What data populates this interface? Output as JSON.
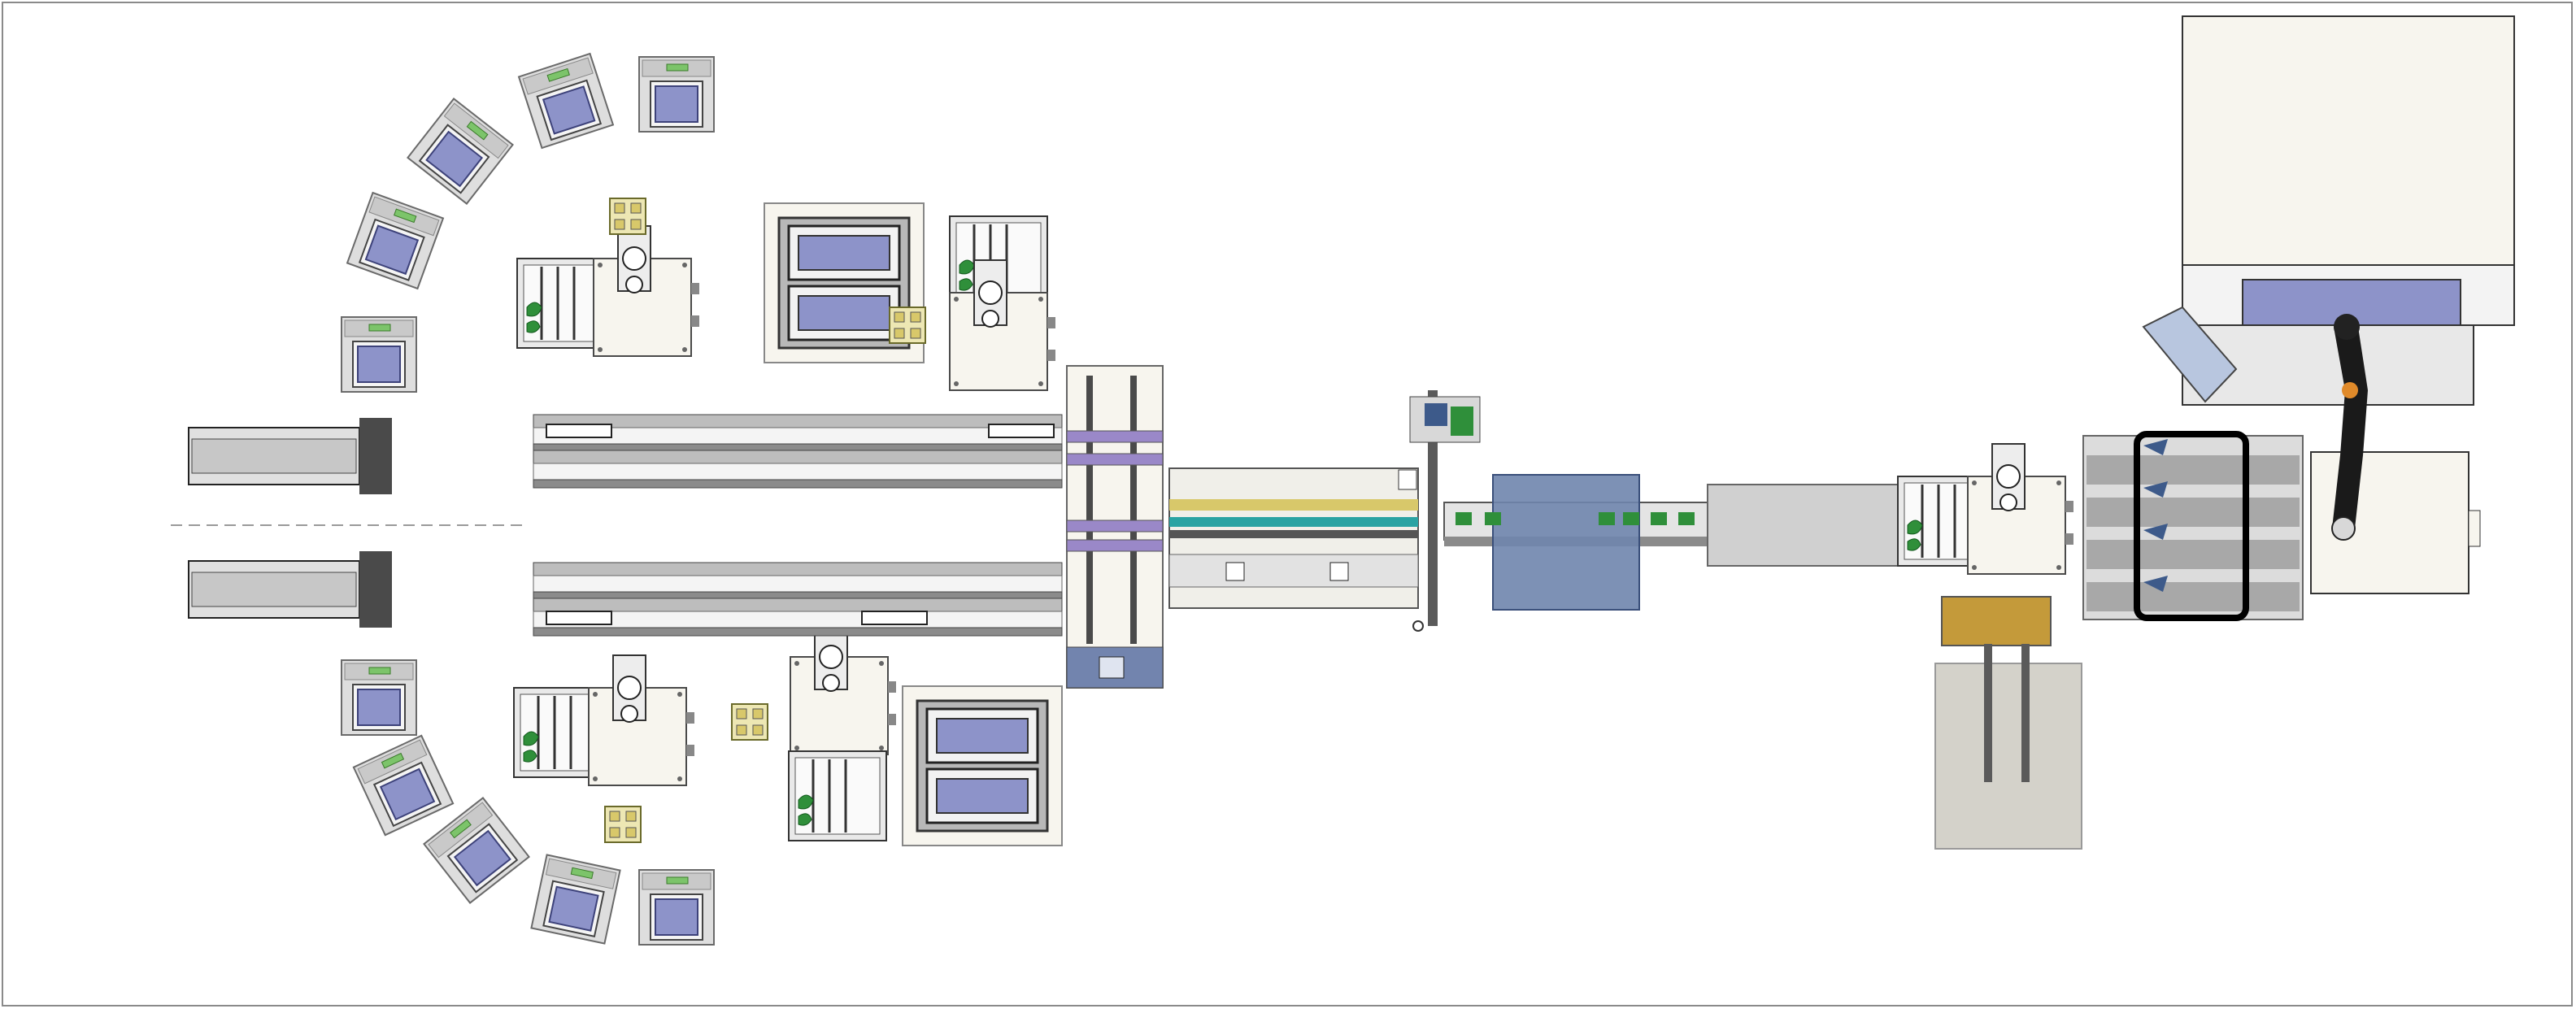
{
  "title": "",
  "colors": {
    "background": "#ffffff",
    "frame": "#8a8a8a",
    "machine_body": "#f7f5ee",
    "machine_outline": "#4a4a4a",
    "tray_fill": "#8d93c9",
    "tray_frame": "#d9d9d9",
    "rail": "#c8c8c8",
    "rail_dark": "#5a5a5a",
    "green_part": "#2f8f3a",
    "yellow_part": "#d8c86a",
    "blue_box": "#6f85ad",
    "teal_line": "#2aa3a3",
    "purple_band": "#9a88c8",
    "robot_black": "#1a1a1a",
    "highlight_box": "#000000"
  },
  "stations": [
    {
      "name": "tray-fan-top",
      "kind": "tray-fan"
    },
    {
      "name": "tray-fan-bottom",
      "kind": "tray-fan"
    },
    {
      "name": "robot-top-left",
      "kind": "scara-robot"
    },
    {
      "name": "robot-top-center",
      "kind": "scara-robot"
    },
    {
      "name": "robot-bottom-left",
      "kind": "scara-robot"
    },
    {
      "name": "robot-bottom-center",
      "kind": "scara-robot"
    },
    {
      "name": "magazine-top",
      "kind": "magazine"
    },
    {
      "name": "magazine-bottom",
      "kind": "magazine"
    },
    {
      "name": "input-conveyor-top",
      "kind": "belt-conveyor"
    },
    {
      "name": "input-conveyor-bottom",
      "kind": "belt-conveyor"
    },
    {
      "name": "transfer-module",
      "kind": "transfer"
    },
    {
      "name": "process-module",
      "kind": "process"
    },
    {
      "name": "inspection-tunnel",
      "kind": "tunnel"
    },
    {
      "name": "output-conveyor",
      "kind": "conveyor"
    },
    {
      "name": "robot-right",
      "kind": "scara-robot"
    },
    {
      "name": "buffer-rack",
      "kind": "rack"
    },
    {
      "name": "industrial-robot",
      "kind": "6-axis-robot"
    },
    {
      "name": "cabinet",
      "kind": "enclosure"
    }
  ]
}
